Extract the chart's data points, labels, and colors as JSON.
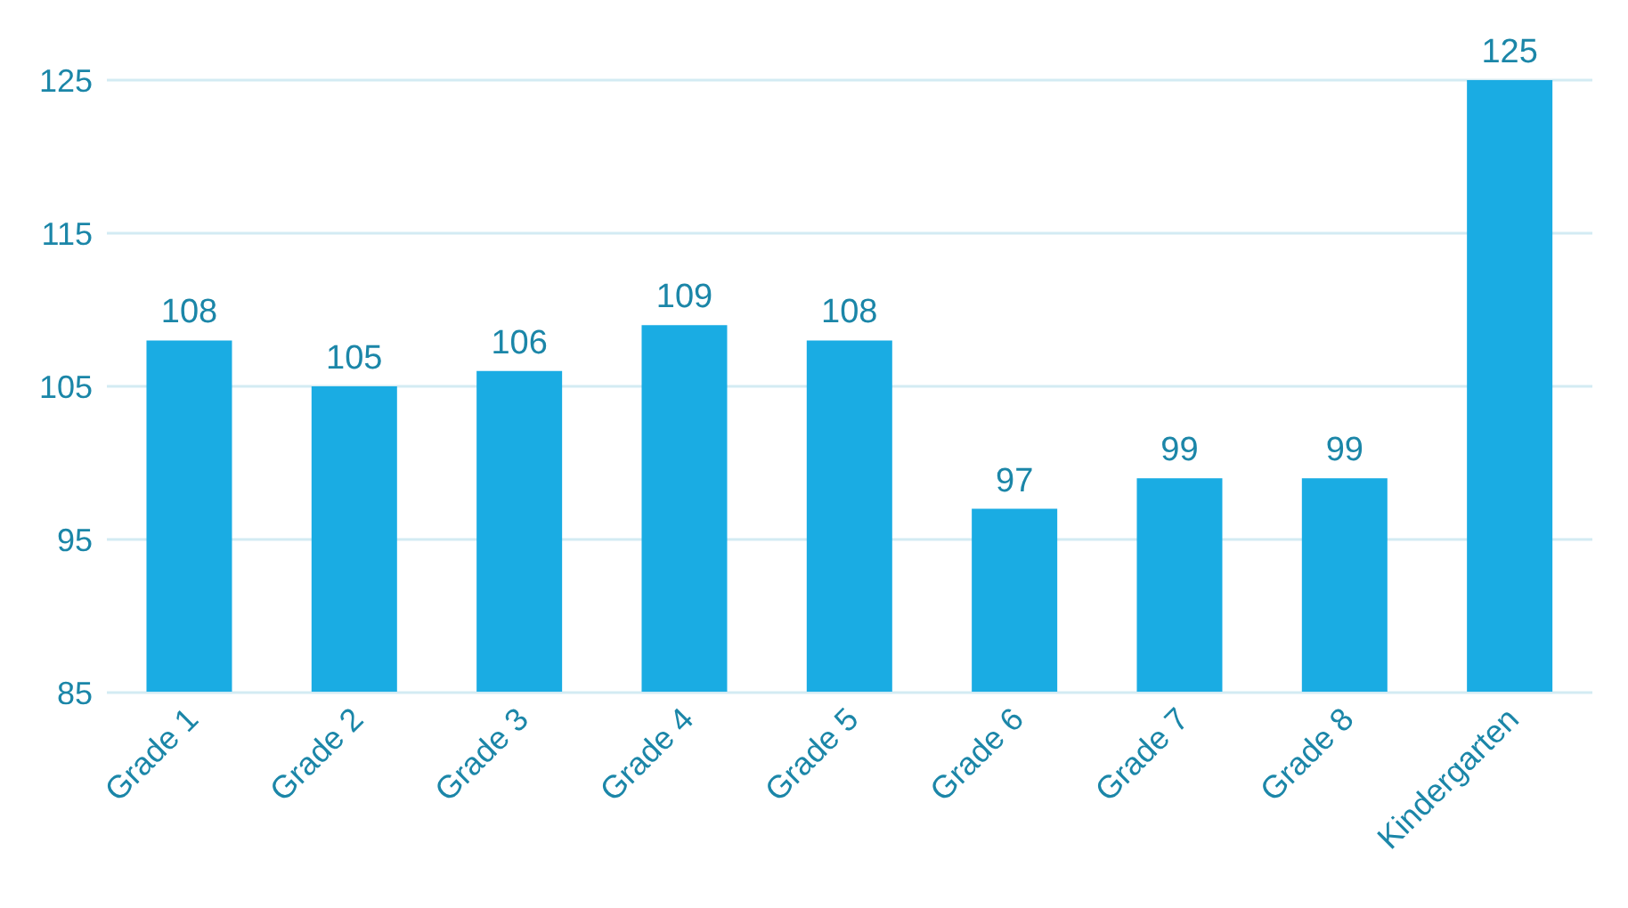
{
  "chart_data": {
    "type": "bar",
    "categories": [
      "Grade 1",
      "Grade 2",
      "Grade 3",
      "Grade 4",
      "Grade 5",
      "Grade 6",
      "Grade 7",
      "Grade 8",
      "Kindergarten"
    ],
    "values": [
      108,
      105,
      106,
      109,
      108,
      97,
      99,
      99,
      125
    ],
    "color": "#1aace3",
    "ylim": [
      85,
      125
    ],
    "yticks": [
      85,
      95,
      105,
      115,
      125
    ],
    "grid": "y",
    "data_labels": true
  }
}
